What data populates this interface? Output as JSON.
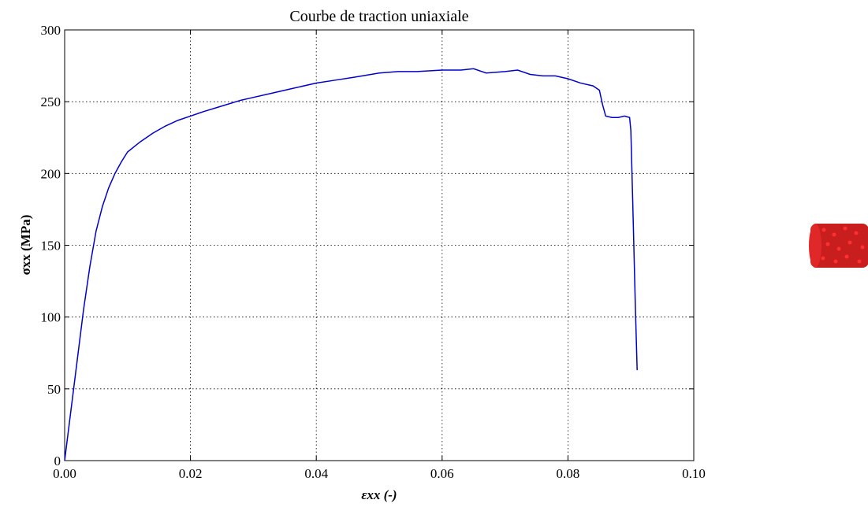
{
  "chart_data": {
    "type": "line",
    "title": "Courbe de traction uniaxiale",
    "xlabel": "εxx (-)",
    "ylabel": "σxx (MPa)",
    "xlim": [
      0,
      0.1
    ],
    "ylim": [
      0,
      300
    ],
    "xticks": [
      {
        "value": 0,
        "label": "0.00"
      },
      {
        "value": 0.02,
        "label": "0.02"
      },
      {
        "value": 0.04,
        "label": "0.04"
      },
      {
        "value": 0.06,
        "label": "0.06"
      },
      {
        "value": 0.08,
        "label": "0.08"
      },
      {
        "value": 0.1,
        "label": "0.10"
      }
    ],
    "yticks": [
      0,
      50,
      100,
      150,
      200,
      250,
      300
    ],
    "grid": true,
    "color": "#0000cc",
    "x": [
      0,
      0.001,
      0.002,
      0.003,
      0.004,
      0.005,
      0.006,
      0.007,
      0.008,
      0.009,
      0.01,
      0.012,
      0.014,
      0.016,
      0.018,
      0.02,
      0.022,
      0.025,
      0.028,
      0.03,
      0.033,
      0.036,
      0.04,
      0.043,
      0.046,
      0.05,
      0.053,
      0.056,
      0.06,
      0.063,
      0.065,
      0.067,
      0.07,
      0.072,
      0.074,
      0.076,
      0.078,
      0.08,
      0.082,
      0.084,
      0.085,
      0.0855,
      0.086,
      0.087,
      0.088,
      0.089,
      0.0898,
      0.09,
      0.0903,
      0.0907,
      0.091
    ],
    "values": [
      0,
      35,
      70,
      105,
      135,
      160,
      177,
      190,
      200,
      208,
      215,
      222,
      228,
      233,
      237,
      240,
      243,
      247,
      251,
      253,
      256,
      259,
      263,
      265,
      267,
      270,
      271,
      271,
      272,
      272,
      273,
      270,
      271,
      272,
      269,
      268,
      268,
      266,
      263,
      261,
      258,
      248,
      240,
      239,
      239,
      240,
      239,
      230,
      180,
      110,
      63
    ]
  }
}
